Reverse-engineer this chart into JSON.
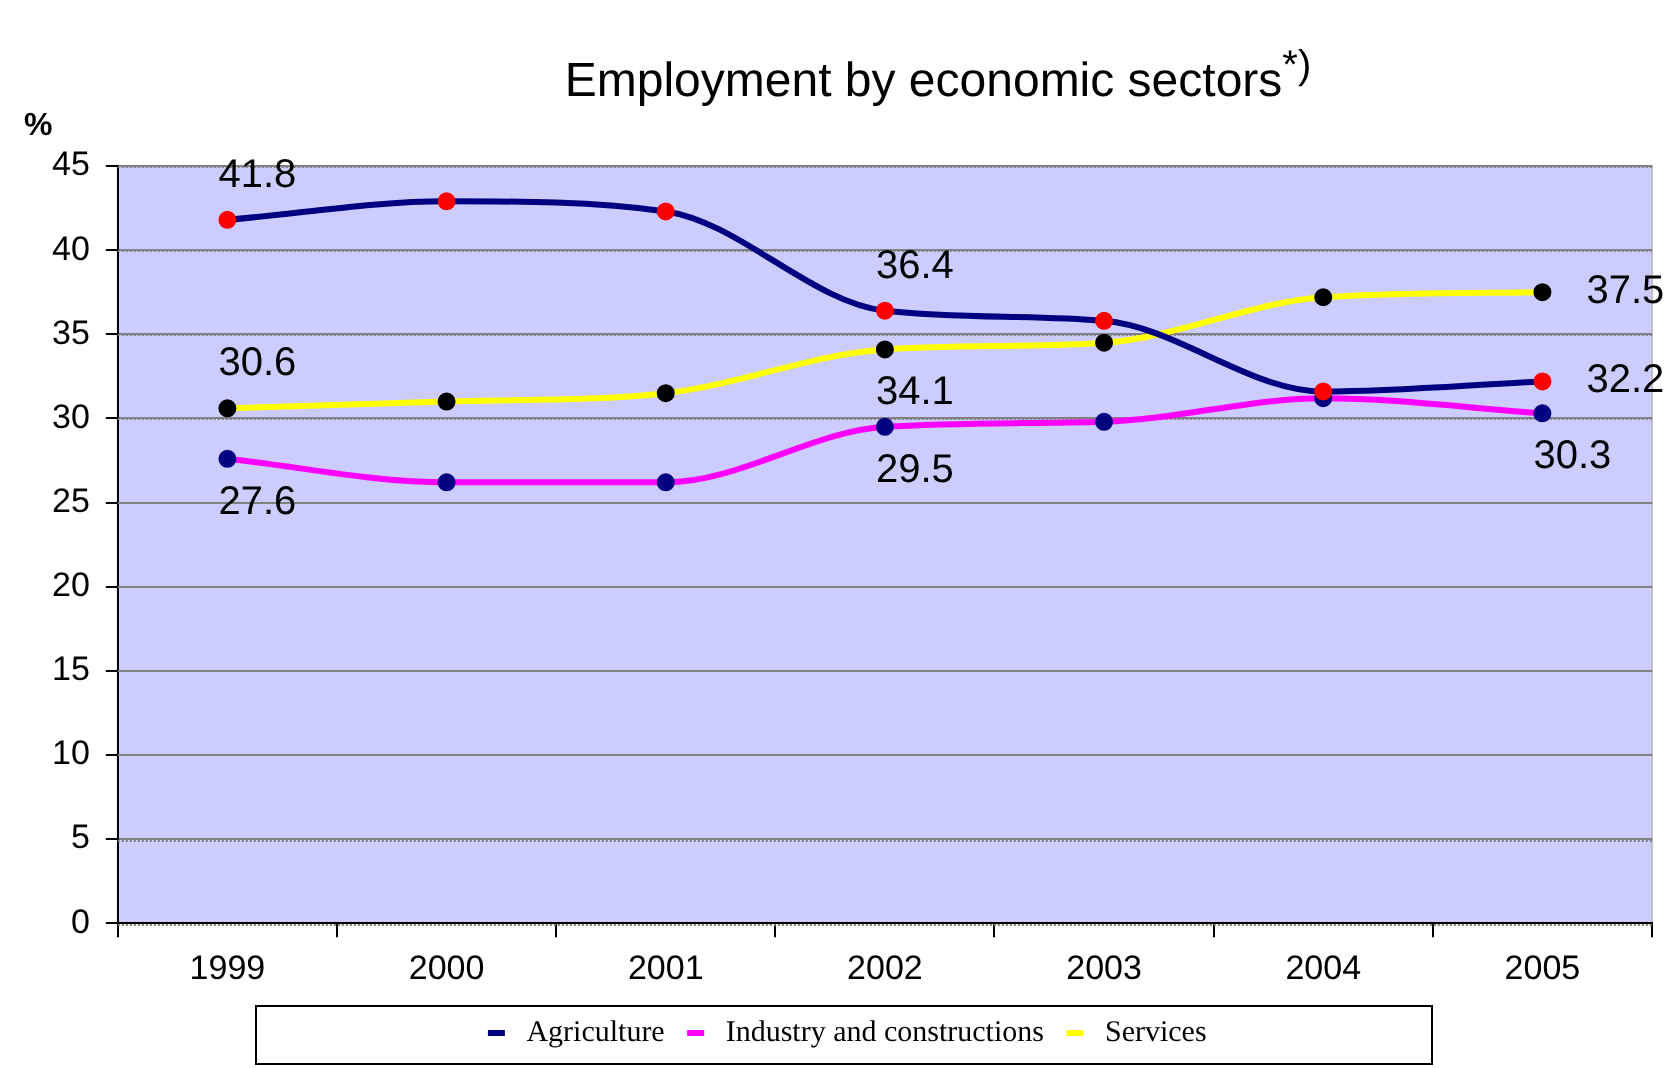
{
  "chart_data": {
    "type": "line",
    "title": "Employment by economic sectors$^{*)}$",
    "ylabel": "%",
    "categories": [
      "1999",
      "2000",
      "2001",
      "2002",
      "2003",
      "2004",
      "2005"
    ],
    "series": [
      {
        "name": "Agriculture",
        "color": "#000080",
        "colors": [
          "#ff0000",
          "#ff0000",
          "#ff0000",
          "#ff0000",
          "#ff0000",
          "#ff0000",
          "#ff0000"
        ],
        "values": [
          41.8,
          42.9,
          42.3,
          36.4,
          35.8,
          31.6,
          32.2
        ],
        "value_labels": [
          "41.8",
          null,
          null,
          "36.4",
          null,
          null,
          "32.2"
        ]
      },
      {
        "name": "Industry and constructions",
        "color": "#ff00ff",
        "colors": [
          "#000080",
          "#000080",
          "#000080",
          "#000080",
          "#000080",
          "#000080",
          "#000080"
        ],
        "values": [
          27.6,
          26.2,
          26.2,
          29.5,
          29.8,
          31.2,
          30.3
        ],
        "value_labels": [
          "27.6",
          null,
          null,
          "29.5",
          null,
          null,
          "30.3"
        ]
      },
      {
        "name": "Services",
        "color": "#ffff00",
        "colors": [
          "#000000",
          "#000000",
          "#000000",
          "#000000",
          "#000000",
          "#000000",
          "#000000"
        ],
        "values": [
          30.6,
          31.0,
          31.5,
          34.1,
          34.5,
          37.2,
          37.5
        ],
        "value_labels": [
          "30.6",
          null,
          null,
          "34.1",
          null,
          null,
          "37.5"
        ]
      }
    ],
    "ylim": [
      0,
      45
    ],
    "yticks": [
      0,
      5,
      10,
      15,
      20,
      25,
      30,
      35,
      40,
      45
    ],
    "grid": "y",
    "legend": "bottom",
    "marker": "circle"
  }
}
